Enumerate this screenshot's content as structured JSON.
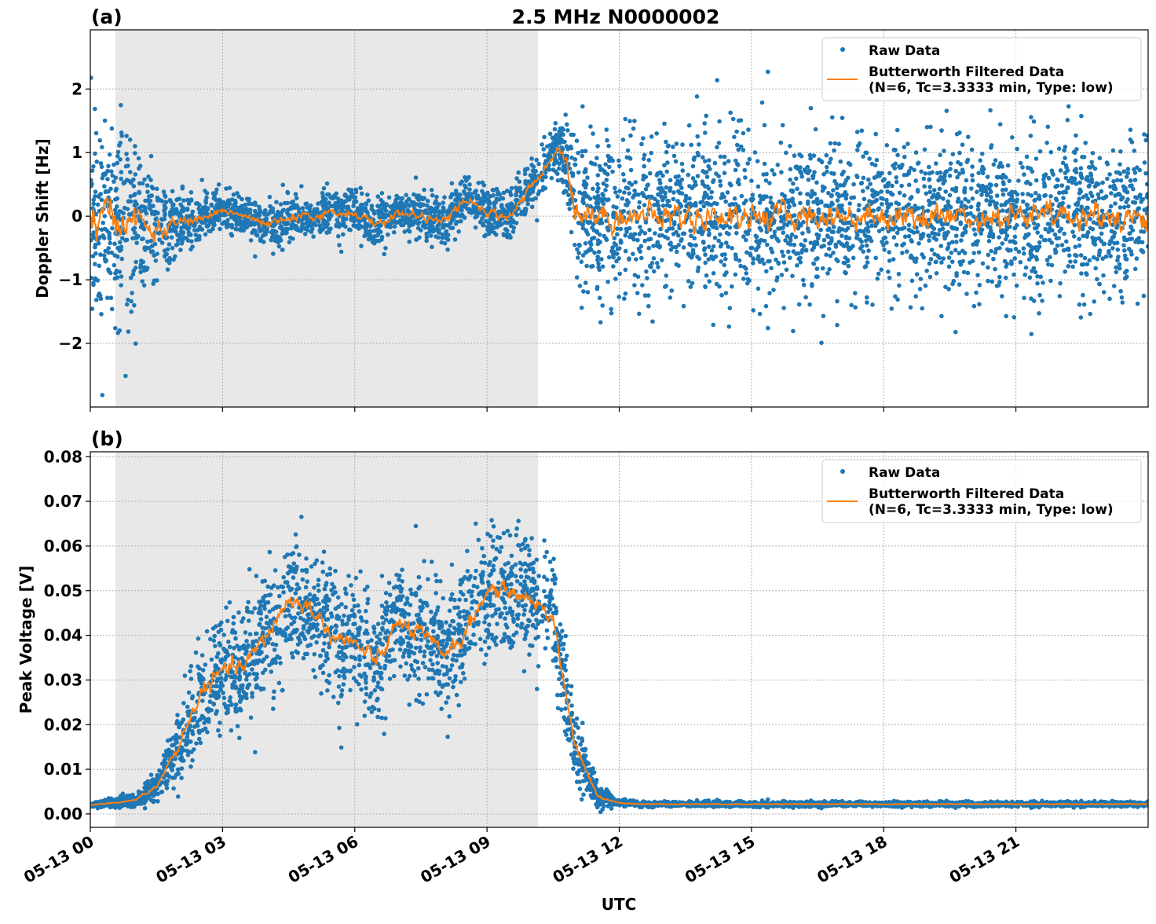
{
  "figure_title": "2.5 MHz N0000002",
  "chart_data": [
    {
      "type": "scatter",
      "panel_label": "(a)",
      "ylabel": "Doppler Shift [Hz]",
      "xlabel": "",
      "xlim_hours": [
        0,
        24
      ],
      "ylim": [
        -3.0,
        2.93
      ],
      "yticks": [
        -2,
        -1,
        0,
        1,
        2
      ],
      "ytick_labels": [
        "−2",
        "−1",
        "0",
        "1",
        "2"
      ],
      "grid": true,
      "shaded_span_hours": [
        0.57,
        10.16
      ],
      "legend_placement": "upper right",
      "legend": [
        "Raw Data",
        "Butterworth Filtered Data",
        "(N=6, Tc=3.3333 min, Type: low)"
      ],
      "colors": {
        "raw": "#1f77b4",
        "filtered": "#ff7f0e",
        "shade": "#e8e8e8"
      },
      "trend": {
        "hours": [
          0,
          0.5,
          1,
          1.5,
          2,
          2.5,
          3,
          3.5,
          4,
          4.5,
          5,
          5.5,
          6,
          6.5,
          7,
          7.5,
          8,
          8.5,
          9,
          9.5,
          10,
          10.3,
          10.6,
          10.8,
          11,
          11.5,
          24
        ],
        "values": [
          0,
          -0.05,
          -0.05,
          -0.25,
          -0.1,
          -0.05,
          0.1,
          0.0,
          -0.15,
          -0.05,
          0.0,
          0.05,
          0.05,
          -0.15,
          0.05,
          0.0,
          -0.1,
          0.25,
          0.05,
          0.0,
          0.45,
          0.7,
          1.1,
          0.9,
          0.1,
          0.0,
          0.0
        ],
        "spread": [
          0.8,
          0.8,
          0.7,
          0.45,
          0.25,
          0.2,
          0.18,
          0.18,
          0.18,
          0.18,
          0.18,
          0.18,
          0.18,
          0.2,
          0.18,
          0.18,
          0.18,
          0.2,
          0.18,
          0.18,
          0.2,
          0.22,
          0.22,
          0.3,
          0.65,
          0.6,
          0.6
        ]
      }
    },
    {
      "type": "scatter",
      "panel_label": "(b)",
      "ylabel": "Peak Voltage [V]",
      "xlabel": "UTC",
      "xlim_hours": [
        0,
        24
      ],
      "ylim": [
        -0.003,
        0.0811
      ],
      "yticks": [
        0,
        0.01,
        0.02,
        0.03,
        0.04,
        0.05,
        0.06,
        0.07,
        0.08
      ],
      "ytick_labels": [
        "0.00",
        "0.01",
        "0.02",
        "0.03",
        "0.04",
        "0.05",
        "0.06",
        "0.07",
        "0.08"
      ],
      "xticks_hours": [
        0,
        3,
        6,
        9,
        12,
        15,
        18,
        21
      ],
      "xtick_labels": [
        "05-13 00",
        "05-13 03",
        "05-13 06",
        "05-13 09",
        "05-13 12",
        "05-13 15",
        "05-13 18",
        "05-13 21"
      ],
      "grid": true,
      "shaded_span_hours": [
        0.57,
        10.16
      ],
      "legend_placement": "upper right",
      "legend": [
        "Raw Data",
        "Butterworth Filtered Data",
        "(N=6, Tc=3.3333 min, Type: low)"
      ],
      "colors": {
        "raw": "#1f77b4",
        "filtered": "#ff7f0e",
        "shade": "#e8e8e8"
      },
      "trend": {
        "hours": [
          0,
          1,
          1.5,
          2,
          2.5,
          3,
          3.5,
          4,
          4.5,
          5,
          5.5,
          6,
          6.5,
          7,
          7.5,
          8,
          8.5,
          9,
          9.5,
          10,
          10.5,
          11,
          11.5,
          12,
          12.5,
          24
        ],
        "values": [
          0.002,
          0.003,
          0.006,
          0.015,
          0.027,
          0.032,
          0.033,
          0.04,
          0.048,
          0.046,
          0.04,
          0.038,
          0.034,
          0.043,
          0.04,
          0.036,
          0.04,
          0.05,
          0.05,
          0.048,
          0.044,
          0.015,
          0.004,
          0.0025,
          0.0022,
          0.0022
        ],
        "spread": [
          0.0003,
          0.0008,
          0.002,
          0.005,
          0.007,
          0.008,
          0.008,
          0.008,
          0.008,
          0.008,
          0.008,
          0.008,
          0.008,
          0.008,
          0.008,
          0.008,
          0.008,
          0.008,
          0.007,
          0.007,
          0.007,
          0.005,
          0.0015,
          0.0004,
          0.0003,
          0.0003
        ]
      }
    }
  ]
}
